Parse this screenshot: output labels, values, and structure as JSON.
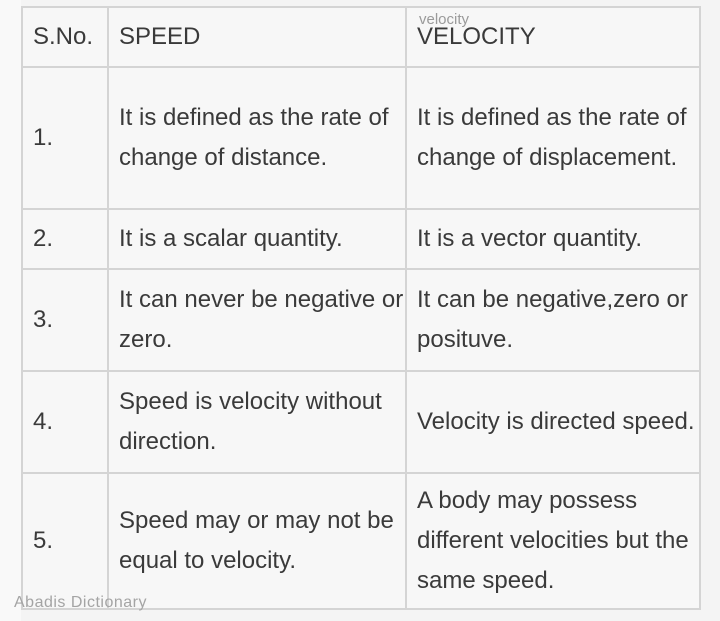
{
  "header": {
    "sno": "S.No.",
    "speed": "SPEED",
    "velocity": "VELOCITY",
    "speed_superscript": "velocity"
  },
  "rows": [
    {
      "sno": "1.",
      "speed": "It is defined as the rate of change of distance.",
      "velocity": "It is defined as the rate of change of displacement."
    },
    {
      "sno": "2.",
      "speed": "It is a scalar quantity.",
      "velocity": "It is a vector quantity."
    },
    {
      "sno": "3.",
      "speed": "It can never be negative or zero.",
      "velocity": "It can be negative,zero or posituve."
    },
    {
      "sno": "4.",
      "speed": "Speed is velocity without direction.",
      "velocity": "Velocity is directed speed."
    },
    {
      "sno": "5.",
      "speed": "Speed may or may not be equal to velocity.",
      "velocity": "A body may possess different velocities but the same speed."
    }
  ],
  "watermark": "Abadis Dictionary"
}
